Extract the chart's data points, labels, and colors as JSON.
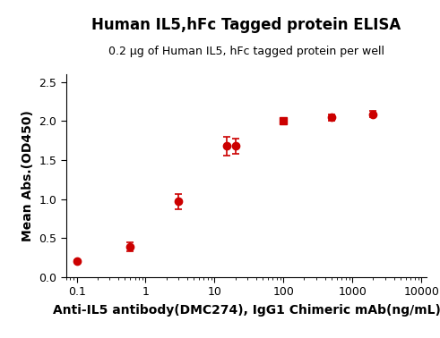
{
  "title": "Human IL5,hFc Tagged protein ELISA",
  "subtitle": "0.2 μg of Human IL5, hFc tagged protein per well",
  "xlabel": "Anti-IL5 antibody(DMC274), IgG1 Chimeric mAb(ng/mL)",
  "ylabel": "Mean Abs.(OD450)",
  "x_data": [
    0.1,
    0.6,
    3.0,
    15.0,
    20.0,
    100.0,
    500.0,
    2000.0
  ],
  "y_data": [
    0.21,
    0.39,
    0.97,
    1.68,
    1.68,
    2.0,
    2.05,
    2.09
  ],
  "y_err": [
    0.01,
    0.06,
    0.1,
    0.12,
    0.1,
    0.03,
    0.04,
    0.04
  ],
  "markers": [
    "o",
    "o",
    "o",
    "o",
    "o",
    "s",
    "o",
    "o"
  ],
  "color": "#cc0000",
  "line_color": "#cc0000",
  "xlim": [
    0.07,
    12000
  ],
  "ylim": [
    0.0,
    2.6
  ],
  "yticks": [
    0.0,
    0.5,
    1.0,
    1.5,
    2.0,
    2.5
  ],
  "xticks": [
    0.1,
    1,
    10,
    100,
    1000,
    10000
  ],
  "title_fontsize": 12,
  "subtitle_fontsize": 9,
  "axis_label_fontsize": 10,
  "tick_fontsize": 9,
  "background_color": "#ffffff"
}
